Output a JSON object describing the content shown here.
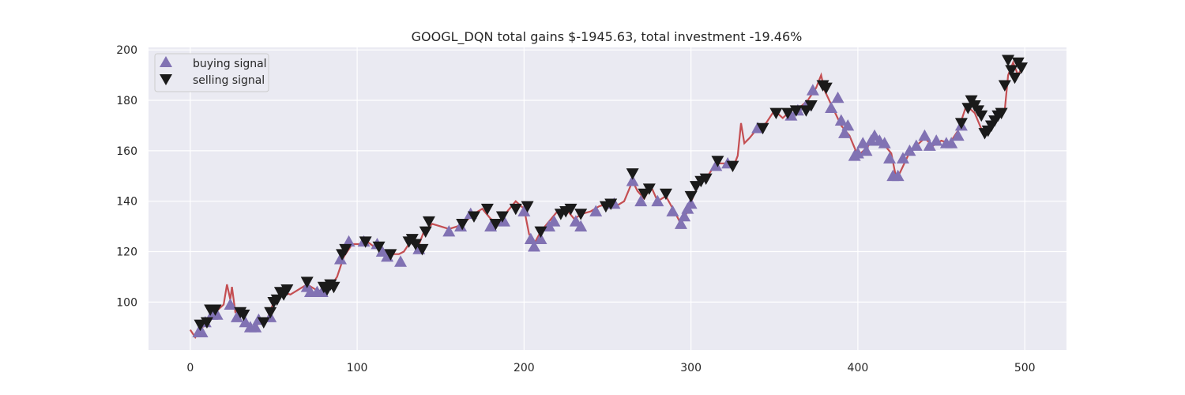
{
  "chart_data": {
    "type": "line",
    "title": "GOOGL_DQN total gains $-1945.63, total investment -19.46%",
    "xlabel": "",
    "ylabel": "",
    "xlim": [
      -25,
      525
    ],
    "ylim": [
      81,
      201
    ],
    "x_ticks": [
      0,
      100,
      200,
      300,
      400,
      500
    ],
    "y_ticks": [
      100,
      120,
      140,
      160,
      180,
      200
    ],
    "grid": true,
    "legend_position": "top-left",
    "colors": {
      "background": "#eaeaf2",
      "price_line": "#c44e52",
      "buy": "#8172b3",
      "sell": "#1a1a1a",
      "grid": "#ffffff"
    },
    "price_keypoints": [
      [
        0,
        89
      ],
      [
        3,
        86
      ],
      [
        6,
        89
      ],
      [
        10,
        92
      ],
      [
        15,
        96
      ],
      [
        20,
        99
      ],
      [
        22,
        107
      ],
      [
        24,
        101
      ],
      [
        25,
        106
      ],
      [
        27,
        96
      ],
      [
        30,
        97
      ],
      [
        33,
        92
      ],
      [
        38,
        90
      ],
      [
        42,
        92
      ],
      [
        46,
        93
      ],
      [
        50,
        100
      ],
      [
        55,
        104
      ],
      [
        60,
        103
      ],
      [
        65,
        105
      ],
      [
        70,
        107
      ],
      [
        75,
        105
      ],
      [
        80,
        104
      ],
      [
        85,
        107
      ],
      [
        88,
        110
      ],
      [
        92,
        118
      ],
      [
        97,
        123
      ],
      [
        102,
        123
      ],
      [
        106,
        124
      ],
      [
        110,
        122
      ],
      [
        115,
        121
      ],
      [
        120,
        119
      ],
      [
        125,
        119
      ],
      [
        128,
        120
      ],
      [
        132,
        124
      ],
      [
        136,
        121
      ],
      [
        140,
        128
      ],
      [
        145,
        131
      ],
      [
        150,
        130
      ],
      [
        155,
        129
      ],
      [
        160,
        130
      ],
      [
        165,
        132
      ],
      [
        170,
        135
      ],
      [
        175,
        137
      ],
      [
        180,
        133
      ],
      [
        185,
        131
      ],
      [
        190,
        136
      ],
      [
        195,
        140
      ],
      [
        200,
        137
      ],
      [
        203,
        127
      ],
      [
        206,
        123
      ],
      [
        210,
        128
      ],
      [
        215,
        132
      ],
      [
        220,
        136
      ],
      [
        225,
        137
      ],
      [
        230,
        133
      ],
      [
        235,
        135
      ],
      [
        240,
        136
      ],
      [
        245,
        138
      ],
      [
        250,
        139
      ],
      [
        255,
        138
      ],
      [
        260,
        140
      ],
      [
        265,
        148
      ],
      [
        268,
        144
      ],
      [
        272,
        141
      ],
      [
        276,
        146
      ],
      [
        280,
        140
      ],
      [
        285,
        142
      ],
      [
        290,
        136
      ],
      [
        294,
        131
      ],
      [
        298,
        136
      ],
      [
        302,
        143
      ],
      [
        306,
        148
      ],
      [
        310,
        150
      ],
      [
        315,
        155
      ],
      [
        320,
        155
      ],
      [
        325,
        153
      ],
      [
        328,
        158
      ],
      [
        330,
        171
      ],
      [
        332,
        163
      ],
      [
        335,
        165
      ],
      [
        340,
        169
      ],
      [
        345,
        171
      ],
      [
        350,
        176
      ],
      [
        355,
        173
      ],
      [
        360,
        176
      ],
      [
        365,
        177
      ],
      [
        370,
        180
      ],
      [
        375,
        185
      ],
      [
        378,
        190
      ],
      [
        380,
        184
      ],
      [
        385,
        177
      ],
      [
        390,
        170
      ],
      [
        395,
        166
      ],
      [
        400,
        158
      ],
      [
        405,
        161
      ],
      [
        410,
        165
      ],
      [
        415,
        163
      ],
      [
        420,
        159
      ],
      [
        423,
        149
      ],
      [
        425,
        151
      ],
      [
        430,
        158
      ],
      [
        435,
        162
      ],
      [
        440,
        165
      ],
      [
        445,
        162
      ],
      [
        450,
        164
      ],
      [
        455,
        163
      ],
      [
        460,
        168
      ],
      [
        465,
        178
      ],
      [
        470,
        175
      ],
      [
        475,
        167
      ],
      [
        480,
        170
      ],
      [
        485,
        175
      ],
      [
        488,
        176
      ],
      [
        490,
        190
      ],
      [
        493,
        195
      ],
      [
        496,
        190
      ],
      [
        499,
        194
      ]
    ],
    "buy_signals": [
      [
        5,
        88
      ],
      [
        7,
        88
      ],
      [
        9,
        92
      ],
      [
        13,
        95
      ],
      [
        16,
        95
      ],
      [
        24,
        99
      ],
      [
        28,
        94
      ],
      [
        33,
        92
      ],
      [
        36,
        90
      ],
      [
        39,
        90
      ],
      [
        41,
        93
      ],
      [
        48,
        94
      ],
      [
        70,
        106
      ],
      [
        72,
        104
      ],
      [
        76,
        104
      ],
      [
        79,
        104
      ],
      [
        90,
        117
      ],
      [
        95,
        124
      ],
      [
        104,
        124
      ],
      [
        112,
        123
      ],
      [
        115,
        120
      ],
      [
        118,
        118
      ],
      [
        126,
        116
      ],
      [
        137,
        121
      ],
      [
        155,
        128
      ],
      [
        162,
        130
      ],
      [
        168,
        135
      ],
      [
        180,
        130
      ],
      [
        188,
        132
      ],
      [
        200,
        136
      ],
      [
        204,
        125
      ],
      [
        206,
        122
      ],
      [
        210,
        125
      ],
      [
        215,
        130
      ],
      [
        218,
        132
      ],
      [
        231,
        132
      ],
      [
        234,
        130
      ],
      [
        243,
        136
      ],
      [
        254,
        139
      ],
      [
        265,
        148
      ],
      [
        270,
        140
      ],
      [
        280,
        140
      ],
      [
        289,
        136
      ],
      [
        294,
        131
      ],
      [
        296,
        134
      ],
      [
        298,
        137
      ],
      [
        300,
        139
      ],
      [
        315,
        154
      ],
      [
        322,
        155
      ],
      [
        340,
        169
      ],
      [
        360,
        174
      ],
      [
        364,
        176
      ],
      [
        369,
        178
      ],
      [
        373,
        184
      ],
      [
        384,
        177
      ],
      [
        388,
        181
      ],
      [
        390,
        172
      ],
      [
        392,
        167
      ],
      [
        394,
        170
      ],
      [
        398,
        158
      ],
      [
        400,
        159
      ],
      [
        403,
        163
      ],
      [
        405,
        160
      ],
      [
        408,
        164
      ],
      [
        410,
        166
      ],
      [
        413,
        164
      ],
      [
        416,
        163
      ],
      [
        419,
        157
      ],
      [
        421,
        150
      ],
      [
        424,
        150
      ],
      [
        427,
        157
      ],
      [
        431,
        160
      ],
      [
        435,
        162
      ],
      [
        440,
        166
      ],
      [
        443,
        162
      ],
      [
        447,
        164
      ],
      [
        453,
        163
      ],
      [
        456,
        163
      ],
      [
        460,
        166
      ],
      [
        462,
        170
      ]
    ],
    "sell_signals": [
      [
        6,
        91
      ],
      [
        10,
        92
      ],
      [
        12,
        97
      ],
      [
        15,
        97
      ],
      [
        30,
        96
      ],
      [
        32,
        95
      ],
      [
        44,
        92
      ],
      [
        48,
        96
      ],
      [
        50,
        100
      ],
      [
        52,
        101
      ],
      [
        54,
        104
      ],
      [
        56,
        103
      ],
      [
        58,
        105
      ],
      [
        70,
        108
      ],
      [
        80,
        106
      ],
      [
        82,
        105
      ],
      [
        84,
        107
      ],
      [
        86,
        106
      ],
      [
        91,
        119
      ],
      [
        93,
        121
      ],
      [
        105,
        124
      ],
      [
        113,
        122
      ],
      [
        120,
        119
      ],
      [
        131,
        124
      ],
      [
        133,
        125
      ],
      [
        135,
        123
      ],
      [
        139,
        121
      ],
      [
        141,
        128
      ],
      [
        143,
        132
      ],
      [
        163,
        131
      ],
      [
        170,
        134
      ],
      [
        178,
        137
      ],
      [
        183,
        131
      ],
      [
        187,
        134
      ],
      [
        195,
        137
      ],
      [
        202,
        138
      ],
      [
        210,
        128
      ],
      [
        222,
        135
      ],
      [
        225,
        136
      ],
      [
        228,
        137
      ],
      [
        234,
        135
      ],
      [
        249,
        138
      ],
      [
        252,
        139
      ],
      [
        265,
        151
      ],
      [
        272,
        143
      ],
      [
        275,
        145
      ],
      [
        285,
        143
      ],
      [
        300,
        142
      ],
      [
        303,
        146
      ],
      [
        306,
        148
      ],
      [
        309,
        149
      ],
      [
        316,
        156
      ],
      [
        325,
        154
      ],
      [
        343,
        169
      ],
      [
        351,
        175
      ],
      [
        358,
        175
      ],
      [
        363,
        176
      ],
      [
        369,
        176
      ],
      [
        372,
        178
      ],
      [
        379,
        186
      ],
      [
        381,
        185
      ],
      [
        462,
        171
      ],
      [
        466,
        177
      ],
      [
        468,
        180
      ],
      [
        470,
        178
      ],
      [
        472,
        176
      ],
      [
        474,
        174
      ],
      [
        476,
        167
      ],
      [
        478,
        168
      ],
      [
        480,
        170
      ],
      [
        482,
        172
      ],
      [
        484,
        174
      ],
      [
        486,
        175
      ],
      [
        488,
        186
      ],
      [
        490,
        196
      ],
      [
        492,
        192
      ],
      [
        494,
        189
      ],
      [
        496,
        195
      ],
      [
        498,
        193
      ]
    ],
    "legend": {
      "buy_label": "buying signal",
      "sell_label": "selling signal"
    }
  }
}
